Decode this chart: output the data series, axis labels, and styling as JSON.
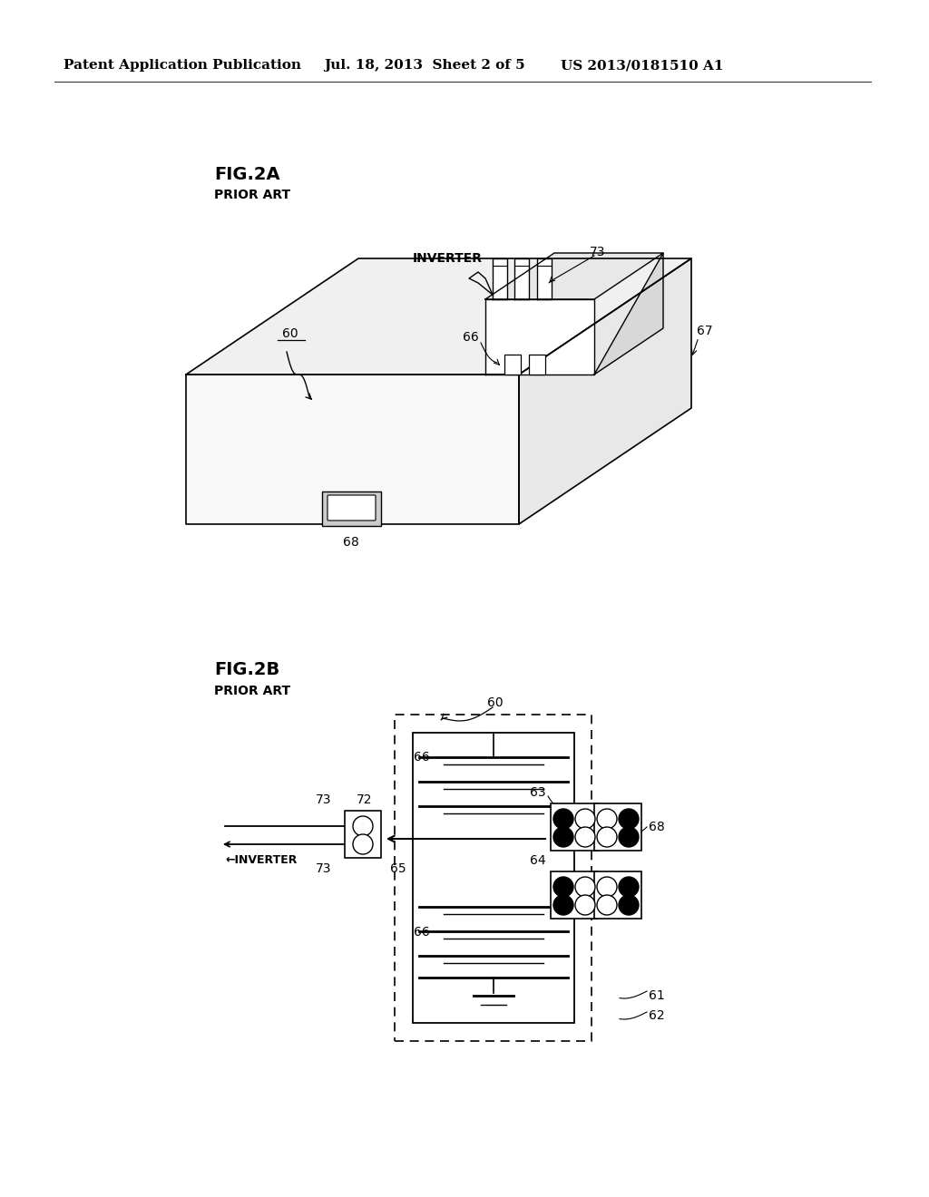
{
  "background_color": "#ffffff",
  "header_text": "Patent Application Publication",
  "header_date": "Jul. 18, 2013  Sheet 2 of 5",
  "header_patent": "US 2013/0181510 A1",
  "fig2a_label": "FIG.2A",
  "fig2a_sub": "PRIOR ART",
  "fig2b_label": "FIG.2B",
  "fig2b_sub": "PRIOR ART",
  "line_color": "#000000",
  "font_size_header": 11,
  "font_size_fig": 14,
  "font_size_sub": 10,
  "font_size_label": 10,
  "font_size_small": 9
}
